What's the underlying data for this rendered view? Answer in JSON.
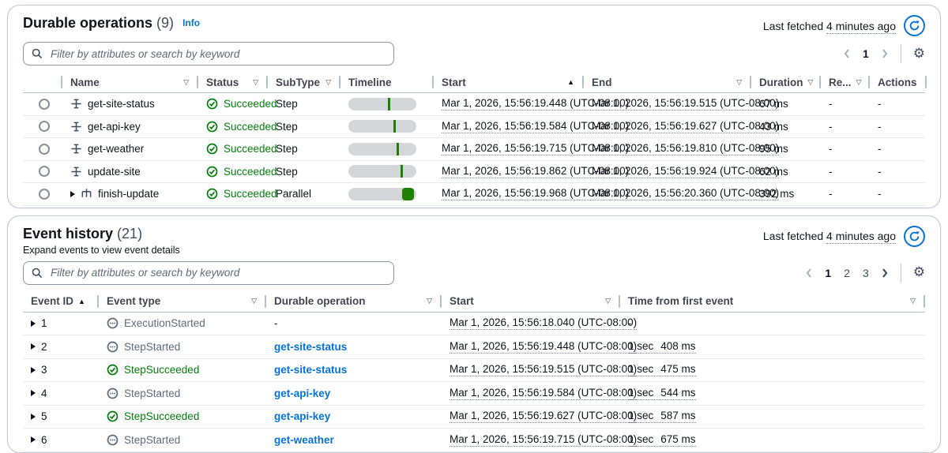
{
  "icons": {
    "filter": "▽",
    "sort_asc": "▲",
    "gear": "⚙"
  },
  "colors": {
    "success_green": "#037f0c",
    "timeline_green": "#1f8104",
    "link_blue": "#0972d3",
    "muted_grey": "#5f6b7a"
  },
  "durable": {
    "title": "Durable operations",
    "count": "(9)",
    "info_label": "Info",
    "last_fetched_prefix": "Last fetched",
    "last_fetched_value": "4 minutes ago",
    "filter_placeholder": "Filter by attributes or search by keyword",
    "pagination": {
      "pages": [
        "1"
      ],
      "current": "1"
    },
    "columns": [
      {
        "label": "Name",
        "icon": "filter"
      },
      {
        "label": "Status",
        "icon": "filter"
      },
      {
        "label": "SubType",
        "icon": "filter"
      },
      {
        "label": "Timeline"
      },
      {
        "label": "Start",
        "icon": "sort"
      },
      {
        "label": "End",
        "icon": "filter"
      },
      {
        "label": "Duration",
        "icon": "filter"
      },
      {
        "label": "Re...",
        "icon": "filter"
      },
      {
        "label": "Actions"
      }
    ],
    "rows": [
      {
        "name": "get-site-status",
        "type_icon": "step",
        "expandable": false,
        "status": "Succeeded",
        "subtype": "Step",
        "timeline": {
          "style": "tick",
          "left_pct": 58
        },
        "start": "Mar 1, 2026, 15:56:19.448 (UTC-08:00)",
        "end": "Mar 1, 2026, 15:56:19.515 (UTC-08:00)",
        "duration": "67 ms",
        "retries": "-",
        "actions": "-"
      },
      {
        "name": "get-api-key",
        "type_icon": "step",
        "expandable": false,
        "status": "Succeeded",
        "subtype": "Step",
        "timeline": {
          "style": "tick",
          "left_pct": 66
        },
        "start": "Mar 1, 2026, 15:56:19.584 (UTC-08:00)",
        "end": "Mar 1, 2026, 15:56:19.627 (UTC-08:00)",
        "duration": "43 ms",
        "retries": "-",
        "actions": "-"
      },
      {
        "name": "get-weather",
        "type_icon": "step",
        "expandable": false,
        "status": "Succeeded",
        "subtype": "Step",
        "timeline": {
          "style": "tick",
          "left_pct": 71
        },
        "start": "Mar 1, 2026, 15:56:19.715 (UTC-08:00)",
        "end": "Mar 1, 2026, 15:56:19.810 (UTC-08:00)",
        "duration": "95 ms",
        "retries": "-",
        "actions": "-"
      },
      {
        "name": "update-site",
        "type_icon": "step",
        "expandable": false,
        "status": "Succeeded",
        "subtype": "Step",
        "timeline": {
          "style": "tick",
          "left_pct": 77
        },
        "start": "Mar 1, 2026, 15:56:19.862 (UTC-08:00)",
        "end": "Mar 1, 2026, 15:56:19.924 (UTC-08:00)",
        "duration": "62 ms",
        "retries": "-",
        "actions": "-"
      },
      {
        "name": "finish-update",
        "type_icon": "parallel",
        "expandable": true,
        "status": "Succeeded",
        "subtype": "Parallel",
        "timeline": {
          "style": "block",
          "left_pct": 79,
          "width_pct": 17
        },
        "start": "Mar 1, 2026, 15:56:19.968 (UTC-08:00)",
        "end": "Mar 1, 2026, 15:56:20.360 (UTC-08:00)",
        "duration": "392 ms",
        "retries": "-",
        "actions": "-"
      }
    ]
  },
  "events": {
    "title": "Event history",
    "count": "(21)",
    "subtitle": "Expand events to view event details",
    "last_fetched_prefix": "Last fetched",
    "last_fetched_value": "4 minutes ago",
    "filter_placeholder": "Filter by attributes or search by keyword",
    "pagination": {
      "pages": [
        "1",
        "2",
        "3"
      ],
      "current": "1"
    },
    "columns": [
      {
        "label": "Event ID",
        "icon": "sort",
        "icon_pos": "inline"
      },
      {
        "label": "Event type",
        "icon": "filter"
      },
      {
        "label": "Durable operation",
        "icon": "filter"
      },
      {
        "label": "Start",
        "icon": "filter"
      },
      {
        "label": "Time from first event",
        "icon": "filter"
      }
    ],
    "rows": [
      {
        "id": "1",
        "type": "ExecutionStarted",
        "state": "started",
        "operation": "-",
        "operation_is_link": false,
        "start": "Mar 1, 2026, 15:56:18.040 (UTC-08:00)",
        "offset": "-"
      },
      {
        "id": "2",
        "type": "StepStarted",
        "state": "started",
        "operation": "get-site-status",
        "operation_is_link": true,
        "start": "Mar 1, 2026, 15:56:19.448 (UTC-08:00)",
        "offset_sec": "1 sec",
        "offset_ms": "408 ms"
      },
      {
        "id": "3",
        "type": "StepSucceeded",
        "state": "succeeded",
        "operation": "get-site-status",
        "operation_is_link": true,
        "start": "Mar 1, 2026, 15:56:19.515 (UTC-08:00)",
        "offset_sec": "1 sec",
        "offset_ms": "475 ms"
      },
      {
        "id": "4",
        "type": "StepStarted",
        "state": "started",
        "operation": "get-api-key",
        "operation_is_link": true,
        "start": "Mar 1, 2026, 15:56:19.584 (UTC-08:00)",
        "offset_sec": "1 sec",
        "offset_ms": "544 ms"
      },
      {
        "id": "5",
        "type": "StepSucceeded",
        "state": "succeeded",
        "operation": "get-api-key",
        "operation_is_link": true,
        "start": "Mar 1, 2026, 15:56:19.627 (UTC-08:00)",
        "offset_sec": "1 sec",
        "offset_ms": "587 ms"
      },
      {
        "id": "6",
        "type": "StepStarted",
        "state": "started",
        "operation": "get-weather",
        "operation_is_link": true,
        "start": "Mar 1, 2026, 15:56:19.715 (UTC-08:00)",
        "offset_sec": "1 sec",
        "offset_ms": "675 ms"
      }
    ]
  }
}
